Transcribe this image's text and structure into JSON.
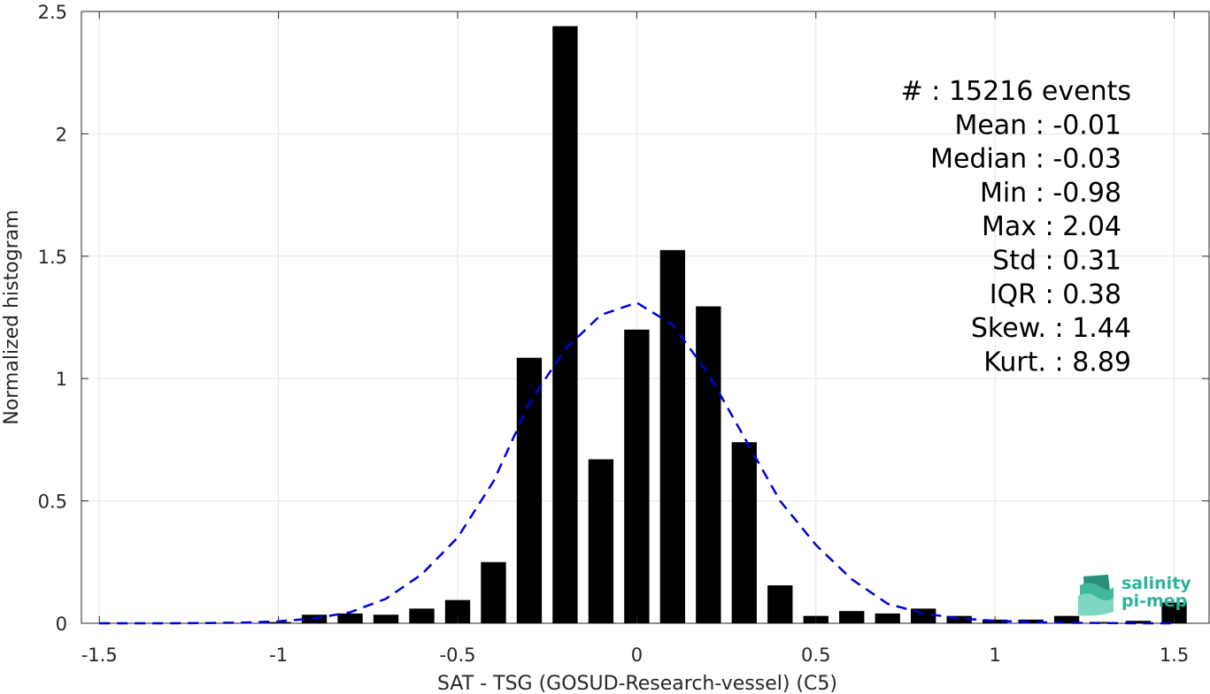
{
  "chart_data": {
    "type": "bar",
    "xlabel": "SAT - TSG (GOSUD-Research-vessel) (C5)",
    "ylabel": "Normalized histogram",
    "xlim": [
      -1.55,
      1.6
    ],
    "ylim": [
      0,
      2.5
    ],
    "xticks": [
      -1.5,
      -1,
      -0.5,
      0,
      0.5,
      1,
      1.5
    ],
    "xtick_labels": [
      "-1.5",
      "-1",
      "-0.5",
      "0",
      "0.5",
      "1",
      "1.5"
    ],
    "yticks": [
      0,
      0.5,
      1,
      1.5,
      2,
      2.5
    ],
    "ytick_labels": [
      "0",
      "0.5",
      "1",
      "1.5",
      "2",
      "2.5"
    ],
    "grid": true,
    "bar_color": "#000000",
    "bar_width": 0.07,
    "bars": {
      "x": [
        -1.0,
        -0.9,
        -0.8,
        -0.7,
        -0.6,
        -0.5,
        -0.4,
        -0.3,
        -0.2,
        -0.1,
        0.0,
        0.1,
        0.2,
        0.3,
        0.4,
        0.5,
        0.6,
        0.7,
        0.8,
        0.9,
        1.0,
        1.1,
        1.2,
        1.3,
        1.4,
        1.5
      ],
      "values": [
        0.005,
        0.035,
        0.04,
        0.035,
        0.06,
        0.095,
        0.25,
        1.085,
        2.44,
        0.67,
        1.2,
        1.525,
        1.295,
        0.74,
        0.155,
        0.03,
        0.05,
        0.04,
        0.06,
        0.03,
        0.015,
        0.015,
        0.03,
        0.005,
        0.01,
        0.085
      ]
    },
    "fit": {
      "style": "dashed",
      "color": "#0000dd",
      "x": [
        -1.5,
        -1.4,
        -1.3,
        -1.2,
        -1.1,
        -1.0,
        -0.9,
        -0.8,
        -0.7,
        -0.6,
        -0.5,
        -0.4,
        -0.3,
        -0.2,
        -0.1,
        0.0,
        0.1,
        0.2,
        0.3,
        0.4,
        0.5,
        0.6,
        0.7,
        0.8,
        0.9,
        1.0,
        1.1,
        1.2,
        1.3,
        1.4,
        1.5
      ],
      "y": [
        0.0,
        0.0,
        0.0,
        0.001,
        0.003,
        0.008,
        0.02,
        0.045,
        0.1,
        0.2,
        0.35,
        0.58,
        0.9,
        1.12,
        1.26,
        1.31,
        1.22,
        1.02,
        0.76,
        0.5,
        0.32,
        0.18,
        0.08,
        0.04,
        0.02,
        0.01,
        0.005,
        0.002,
        0.001,
        0.0,
        0.0
      ]
    },
    "annotations": [
      {
        "text": "#  : 15216 events"
      },
      {
        "text": "Mean : -0.01"
      },
      {
        "text": "Median : -0.03"
      },
      {
        "text": "Min : -0.98"
      },
      {
        "text": "Max : 2.04"
      },
      {
        "text": "Std : 0.31"
      },
      {
        "text": "IQR : 0.38"
      },
      {
        "text": "Skew. : 1.44"
      },
      {
        "text": "Kurt. : 8.89"
      }
    ]
  },
  "logo": {
    "line1": "salinity",
    "line2": "pi-mep"
  }
}
